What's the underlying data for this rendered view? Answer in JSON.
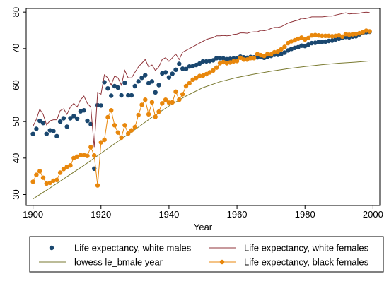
{
  "chart_data": {
    "type": "line",
    "xlabel": "Year",
    "ylabel": "",
    "xlim": [
      1898,
      2002
    ],
    "ylim": [
      27,
      81
    ],
    "xticks": [
      1900,
      1920,
      1940,
      1960,
      1980,
      2000
    ],
    "yticks": [
      30,
      40,
      50,
      60,
      70,
      80
    ],
    "legend_position": "bottom",
    "grid": false,
    "series": [
      {
        "name": "Life expectancy, white males",
        "style": "scatter",
        "color": "#1a476f",
        "x": [
          1900,
          1901,
          1902,
          1903,
          1904,
          1905,
          1906,
          1907,
          1908,
          1909,
          1910,
          1911,
          1912,
          1913,
          1914,
          1915,
          1916,
          1917,
          1918,
          1919,
          1920,
          1921,
          1922,
          1923,
          1924,
          1925,
          1926,
          1927,
          1928,
          1929,
          1930,
          1931,
          1932,
          1933,
          1934,
          1935,
          1936,
          1937,
          1938,
          1939,
          1940,
          1941,
          1942,
          1943,
          1944,
          1945,
          1946,
          1947,
          1948,
          1949,
          1950,
          1951,
          1952,
          1953,
          1954,
          1955,
          1956,
          1957,
          1958,
          1959,
          1960,
          1961,
          1962,
          1963,
          1964,
          1965,
          1966,
          1967,
          1968,
          1969,
          1970,
          1971,
          1972,
          1973,
          1974,
          1975,
          1976,
          1977,
          1978,
          1979,
          1980,
          1981,
          1982,
          1983,
          1984,
          1985,
          1986,
          1987,
          1988,
          1989,
          1990,
          1991,
          1992,
          1993,
          1994,
          1995,
          1996,
          1997,
          1998,
          1999
        ],
        "values": [
          46.6,
          48.0,
          50.2,
          49.6,
          46.6,
          47.6,
          47.4,
          46.0,
          50.0,
          50.9,
          48.6,
          50.9,
          51.5,
          50.8,
          52.8,
          53.1,
          50.2,
          49.3,
          37.1,
          54.5,
          54.4,
          60.8,
          59.1,
          57.1,
          59.7,
          59.3,
          57.2,
          60.6,
          57.2,
          57.2,
          59.7,
          61.0,
          62.0,
          62.7,
          60.5,
          61.0,
          58.0,
          60.0,
          63.2,
          63.5,
          62.1,
          63.1,
          64.2,
          65.8,
          64.5,
          64.4,
          65.1,
          65.2,
          65.5,
          65.9,
          66.5,
          66.5,
          66.6,
          66.8,
          67.4,
          67.4,
          67.3,
          67.1,
          67.2,
          67.3,
          67.4,
          67.8,
          67.6,
          67.5,
          67.7,
          67.6,
          67.6,
          67.8,
          67.5,
          67.8,
          68.0,
          68.3,
          68.3,
          68.5,
          68.9,
          69.5,
          69.9,
          70.2,
          70.4,
          70.8,
          70.7,
          71.1,
          71.5,
          71.6,
          71.8,
          71.8,
          71.9,
          72.1,
          72.2,
          72.5,
          72.7,
          72.9,
          73.2,
          73.1,
          73.3,
          73.4,
          73.9,
          74.3,
          74.5,
          74.6
        ]
      },
      {
        "name": "Life expectancy, white females",
        "style": "line",
        "color": "#90353b",
        "x": [
          1900,
          1901,
          1902,
          1903,
          1904,
          1905,
          1906,
          1907,
          1908,
          1909,
          1910,
          1911,
          1912,
          1913,
          1914,
          1915,
          1916,
          1917,
          1918,
          1919,
          1920,
          1921,
          1922,
          1923,
          1924,
          1925,
          1926,
          1927,
          1928,
          1929,
          1930,
          1931,
          1932,
          1933,
          1934,
          1935,
          1936,
          1937,
          1938,
          1939,
          1940,
          1941,
          1942,
          1943,
          1944,
          1945,
          1946,
          1947,
          1948,
          1949,
          1950,
          1951,
          1952,
          1953,
          1954,
          1955,
          1956,
          1957,
          1958,
          1959,
          1960,
          1961,
          1962,
          1963,
          1964,
          1965,
          1966,
          1967,
          1968,
          1969,
          1970,
          1971,
          1972,
          1973,
          1974,
          1975,
          1976,
          1977,
          1978,
          1979,
          1980,
          1981,
          1982,
          1983,
          1984,
          1985,
          1986,
          1987,
          1988,
          1989,
          1990,
          1991,
          1992,
          1993,
          1994,
          1995,
          1996,
          1997,
          1998,
          1999
        ],
        "values": [
          48.7,
          50.6,
          53.4,
          52.0,
          49.1,
          50.2,
          50.5,
          50.5,
          53.0,
          53.5,
          52.0,
          54.0,
          55.0,
          54.0,
          56.0,
          57.0,
          55.0,
          54.0,
          43.0,
          58.0,
          57.5,
          62.8,
          62.0,
          60.0,
          62.5,
          62.0,
          60.0,
          64.0,
          62.0,
          62.0,
          63.5,
          65.0,
          66.0,
          67.0,
          65.0,
          65.5,
          64.0,
          65.0,
          67.0,
          67.5,
          66.5,
          67.5,
          68.5,
          67.0,
          69.0,
          69.5,
          70.0,
          70.5,
          71.0,
          71.5,
          72.0,
          72.5,
          72.8,
          73.0,
          73.5,
          73.5,
          73.6,
          73.5,
          73.6,
          73.9,
          74.0,
          74.3,
          74.3,
          74.2,
          74.5,
          74.6,
          74.6,
          75.0,
          74.9,
          75.1,
          75.5,
          75.8,
          75.8,
          76.0,
          76.5,
          77.0,
          77.3,
          77.6,
          77.8,
          78.3,
          78.2,
          78.4,
          78.7,
          78.7,
          78.7,
          78.7,
          78.8,
          78.9,
          78.9,
          79.2,
          79.4,
          79.6,
          79.8,
          79.5,
          79.6,
          79.6,
          79.7,
          79.9,
          80.0,
          79.9
        ]
      },
      {
        "name": "lowess le_bmale year",
        "style": "line",
        "color": "#7a7a30",
        "x": [
          1900,
          1905,
          1910,
          1915,
          1920,
          1925,
          1930,
          1935,
          1940,
          1945,
          1950,
          1955,
          1960,
          1965,
          1970,
          1975,
          1980,
          1985,
          1990,
          1995,
          1999
        ],
        "values": [
          28.8,
          31.8,
          34.9,
          38.0,
          41.3,
          44.6,
          47.8,
          51.2,
          54.3,
          57.0,
          59.3,
          60.9,
          62.1,
          63.0,
          63.8,
          64.5,
          65.1,
          65.6,
          66.0,
          66.3,
          66.6
        ]
      },
      {
        "name": "Life expectancy, black females",
        "style": "line-markers",
        "color": "#e8870c",
        "x": [
          1900,
          1901,
          1902,
          1903,
          1904,
          1905,
          1906,
          1907,
          1908,
          1909,
          1910,
          1911,
          1912,
          1913,
          1914,
          1915,
          1916,
          1917,
          1918,
          1919,
          1920,
          1921,
          1922,
          1923,
          1924,
          1925,
          1926,
          1927,
          1928,
          1929,
          1930,
          1931,
          1932,
          1933,
          1934,
          1935,
          1936,
          1937,
          1938,
          1939,
          1940,
          1941,
          1942,
          1943,
          1944,
          1945,
          1946,
          1947,
          1948,
          1949,
          1950,
          1951,
          1952,
          1953,
          1954,
          1955,
          1956,
          1957,
          1958,
          1959,
          1960,
          1961,
          1962,
          1963,
          1964,
          1965,
          1966,
          1967,
          1968,
          1969,
          1970,
          1971,
          1972,
          1973,
          1974,
          1975,
          1976,
          1977,
          1978,
          1979,
          1980,
          1981,
          1982,
          1983,
          1984,
          1985,
          1986,
          1987,
          1988,
          1989,
          1990,
          1991,
          1992,
          1993,
          1994,
          1995,
          1996,
          1997,
          1998,
          1999
        ],
        "values": [
          33.5,
          35.4,
          36.4,
          34.6,
          33.0,
          33.2,
          33.8,
          34.0,
          36.0,
          37.0,
          37.6,
          38.0,
          40.0,
          40.4,
          40.8,
          40.8,
          40.6,
          43.0,
          40.7,
          32.5,
          44.3,
          45.0,
          51.2,
          53.1,
          49.0,
          47.0,
          45.6,
          49.0,
          46.7,
          47.6,
          48.5,
          51.8,
          54.6,
          56.0,
          52.0,
          55.3,
          51.3,
          52.7,
          55.0,
          56.0,
          55.2,
          55.3,
          58.2,
          56.0,
          57.5,
          59.7,
          60.5,
          61.5,
          62.0,
          62.5,
          62.6,
          63.0,
          63.5,
          64.0,
          64.8,
          66.0,
          66.3,
          66.0,
          66.2,
          66.5,
          66.6,
          67.5,
          67.0,
          67.0,
          67.4,
          67.4,
          68.5,
          68.2,
          68.0,
          68.6,
          68.4,
          69.0,
          69.2,
          69.8,
          70.5,
          71.5,
          72.0,
          72.3,
          72.7,
          73.0,
          72.5,
          72.9,
          73.6,
          73.7,
          73.6,
          73.5,
          73.5,
          73.5,
          73.4,
          73.5,
          73.6,
          73.3,
          74.0,
          73.8,
          73.9,
          74.0,
          74.2,
          74.5,
          74.9,
          74.7
        ]
      }
    ]
  }
}
